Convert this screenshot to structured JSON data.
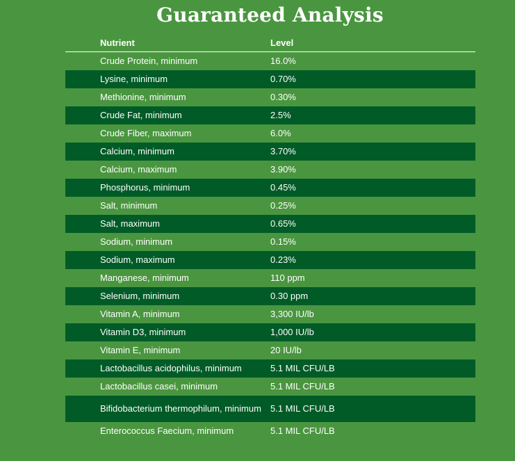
{
  "title": "Guaranteed Analysis",
  "columns": [
    "Nutrient",
    "Level"
  ],
  "rows": [
    {
      "nutrient": "Crude Protein, minimum",
      "level": "16.0%"
    },
    {
      "nutrient": "Lysine, minimum",
      "level": "0.70%"
    },
    {
      "nutrient": "Methionine, minimum",
      "level": "0.30%"
    },
    {
      "nutrient": "Crude Fat, minimum",
      "level": "2.5%"
    },
    {
      "nutrient": "Crude Fiber, maximum",
      "level": "6.0%"
    },
    {
      "nutrient": "Calcium, minimum",
      "level": "3.70%"
    },
    {
      "nutrient": "Calcium, maximum",
      "level": "3.90%"
    },
    {
      "nutrient": "Phosphorus, minimum",
      "level": "0.45%"
    },
    {
      "nutrient": "Salt, minimum",
      "level": "0.25%"
    },
    {
      "nutrient": "Salt, maximum",
      "level": "0.65%"
    },
    {
      "nutrient": "Sodium, minimum",
      "level": "0.15%"
    },
    {
      "nutrient": "Sodium, maximum",
      "level": "0.23%"
    },
    {
      "nutrient": "Manganese, minimum",
      "level": "110 ppm"
    },
    {
      "nutrient": "Selenium, minimum",
      "level": "0.30 ppm"
    },
    {
      "nutrient": "Vitamin A, minimum",
      "level": "3,300 IU/lb"
    },
    {
      "nutrient": "Vitamin D3, minimum",
      "level": "1,000 IU/lb"
    },
    {
      "nutrient": "Vitamin E, minimum",
      "level": "20 IU/lb"
    },
    {
      "nutrient": "Lactobacillus acidophilus, minimum",
      "level": "5.1 MIL CFU/LB"
    },
    {
      "nutrient": "Lactobacillus casei, minimum",
      "level": "5.1 MIL CFU/LB"
    },
    {
      "nutrient": "Bifidobacterium thermophilum, minimum",
      "level": "5.1 MIL CFU/LB"
    },
    {
      "nutrient": "Enterococcus Faecium, minimum",
      "level": "5.1 MIL CFU/LB"
    }
  ]
}
